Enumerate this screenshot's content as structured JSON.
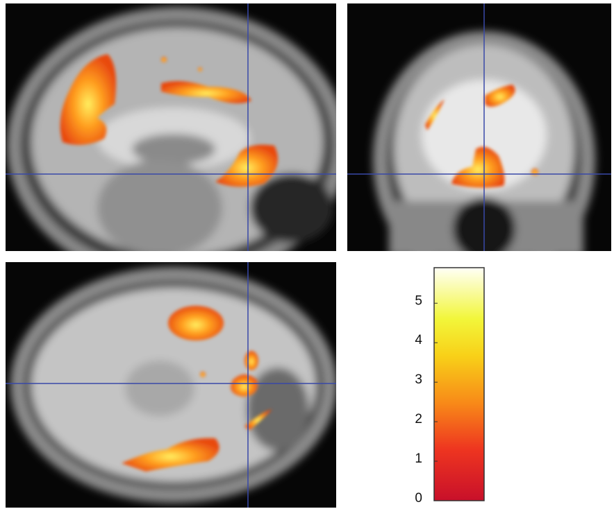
{
  "colorbar": {
    "lim": [
      0,
      5.9
    ],
    "ticks": [
      0,
      1,
      2,
      3,
      4,
      5
    ]
  }
}
